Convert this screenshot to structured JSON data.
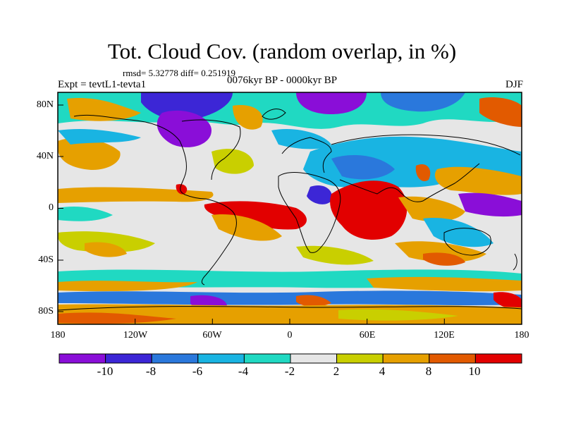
{
  "title": "Tot. Cloud Cov. (random overlap, in %)",
  "stats": "rmsd= 5.32778 diff= 0.251919",
  "experiment": "Expt = tevtL1-tevta1",
  "period": "0076kyr BP - 0000kyr BP",
  "season": "DJF",
  "map": {
    "projection": "cylindrical-equidistant",
    "lon_range": [
      -180,
      180
    ],
    "lat_range": [
      -90,
      90
    ],
    "x_ticks": [
      "180",
      "120W",
      "60W",
      "0",
      "60E",
      "120E",
      "180"
    ],
    "y_ticks": [
      "80N",
      "40N",
      "0",
      "40S",
      "80S"
    ]
  },
  "colorbar": {
    "labels": [
      "-10",
      "-8",
      "-6",
      "-4",
      "-2",
      "2",
      "4",
      "8",
      "10"
    ],
    "colors": [
      "#8a0ed8",
      "#3c26d6",
      "#2a78dc",
      "#19b4e2",
      "#20d9c2",
      "#e6e6e6",
      "#c9cf00",
      "#e6a000",
      "#e25a00",
      "#e20000"
    ]
  }
}
